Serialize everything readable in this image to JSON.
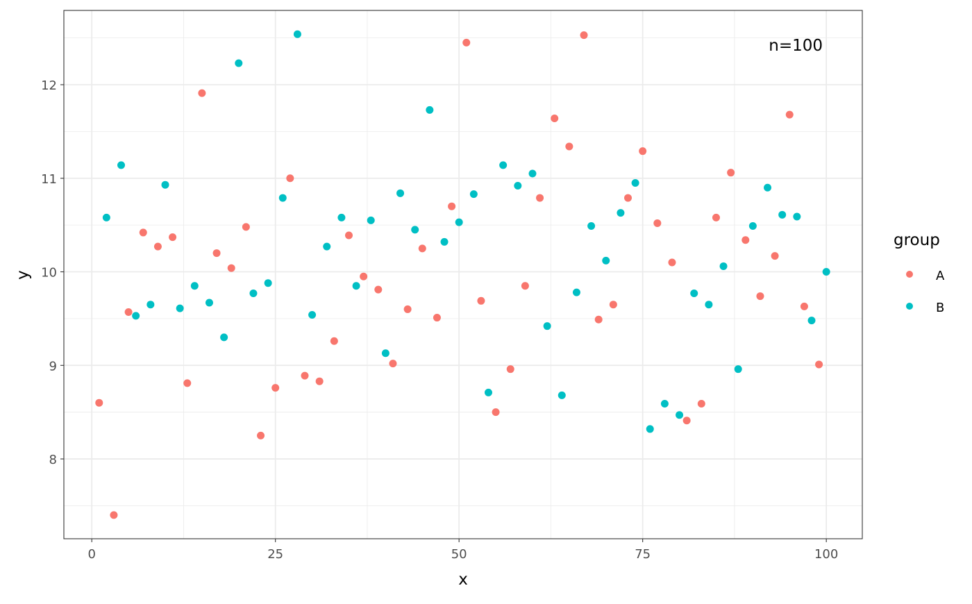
{
  "chart_data": {
    "type": "scatter",
    "title": "",
    "xlabel": "x",
    "ylabel": "y",
    "xlim": [
      -3.8,
      104.9
    ],
    "ylim": [
      7.147,
      12.794
    ],
    "xticks": [
      0,
      25,
      50,
      75,
      100
    ],
    "yticks": [
      8,
      9,
      10,
      11,
      12
    ],
    "grid": true,
    "annotation": "n=100",
    "legend": {
      "title": "group",
      "position": "right",
      "entries": [
        "A",
        "B"
      ]
    },
    "colors": {
      "A": "#F8766D",
      "B": "#00BFC4"
    },
    "series": [
      {
        "name": "A",
        "x": [
          1,
          3,
          5,
          7,
          9,
          11,
          13,
          15,
          17,
          19,
          21,
          23,
          25,
          27,
          29,
          31,
          33,
          35,
          37,
          39,
          41,
          43,
          45,
          47,
          49,
          51,
          53,
          55,
          57,
          59,
          61,
          63,
          65,
          67,
          69,
          71,
          73,
          75,
          77,
          79,
          81,
          83,
          85,
          87,
          89,
          91,
          93,
          95,
          97,
          99
        ],
        "y": [
          8.6,
          7.4,
          9.57,
          10.42,
          10.27,
          10.37,
          8.81,
          11.91,
          10.2,
          10.04,
          10.48,
          8.25,
          8.76,
          11.0,
          8.89,
          8.83,
          9.26,
          10.39,
          9.95,
          9.81,
          9.02,
          9.6,
          10.25,
          9.51,
          10.7,
          12.45,
          9.69,
          8.5,
          8.96,
          9.85,
          10.79,
          11.64,
          11.34,
          12.53,
          9.49,
          9.65,
          10.79,
          11.29,
          10.52,
          10.1,
          8.41,
          8.59,
          10.58,
          11.06,
          10.34,
          9.74,
          10.17,
          11.68,
          9.63,
          9.01
        ]
      },
      {
        "name": "B",
        "x": [
          2,
          4,
          6,
          8,
          10,
          12,
          14,
          16,
          18,
          20,
          22,
          24,
          26,
          28,
          30,
          32,
          34,
          36,
          38,
          40,
          42,
          44,
          46,
          48,
          50,
          52,
          54,
          56,
          58,
          60,
          62,
          64,
          66,
          68,
          70,
          72,
          74,
          76,
          78,
          80,
          82,
          84,
          86,
          88,
          90,
          92,
          94,
          96,
          98,
          100
        ],
        "y": [
          10.58,
          11.14,
          9.53,
          9.65,
          10.93,
          9.61,
          9.85,
          9.67,
          9.3,
          12.23,
          9.77,
          9.88,
          10.79,
          12.54,
          9.54,
          10.27,
          10.58,
          9.85,
          10.55,
          9.13,
          10.84,
          10.45,
          11.73,
          10.32,
          10.53,
          10.83,
          8.71,
          11.14,
          10.92,
          11.05,
          9.42,
          8.68,
          9.78,
          10.49,
          10.12,
          10.63,
          10.95,
          8.32,
          8.59,
          8.47,
          9.77,
          9.65,
          10.06,
          8.96,
          10.49,
          10.9,
          10.61,
          10.59,
          9.48,
          10.0
        ]
      }
    ]
  }
}
